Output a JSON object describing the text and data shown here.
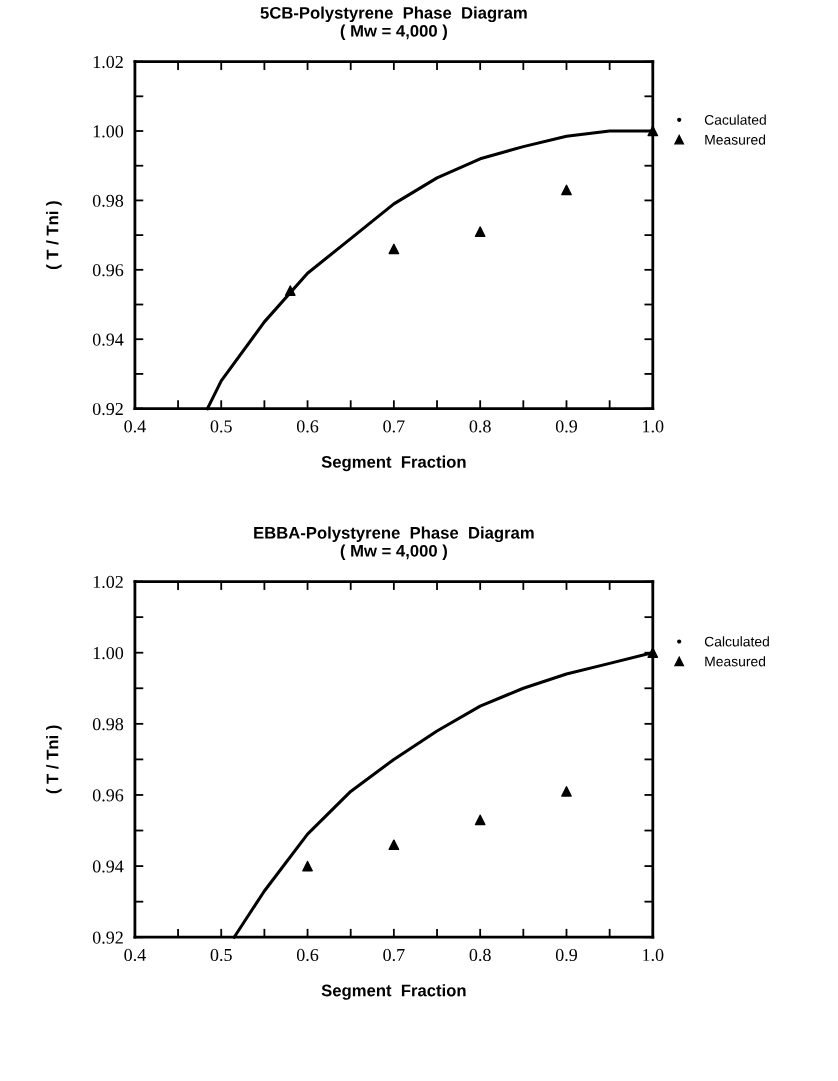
{
  "chart_data": [
    {
      "type": "line",
      "title": "5CB-Polystyrene  Phase  Diagram\n( Mw = 4,000 )",
      "xlabel": "Segment  Fraction",
      "ylabel": "( T / Tni )",
      "xlim": [
        0.4,
        1.0
      ],
      "ylim": [
        0.92,
        1.02
      ],
      "xticks": [
        0.4,
        {
          "value": 0.45,
          "label": null
        },
        0.5,
        {
          "value": 0.55,
          "label": null
        },
        0.6,
        {
          "value": 0.65,
          "label": null
        },
        0.7,
        {
          "value": 0.75,
          "label": null
        },
        0.8,
        {
          "value": 0.85,
          "label": null
        },
        0.9,
        {
          "value": 0.95,
          "label": null
        },
        {
          "value": 1.0,
          "label": "1.0"
        }
      ],
      "yticks": [
        0.92,
        {
          "value": 0.93,
          "label": null
        },
        0.94,
        {
          "value": 0.95,
          "label": null
        },
        0.96,
        {
          "value": 0.97,
          "label": null
        },
        0.98,
        {
          "value": 0.99,
          "label": null
        },
        {
          "value": 1.0,
          "label": "1.00"
        },
        {
          "value": 1.01,
          "label": null
        },
        1.02
      ],
      "grid": false,
      "legend": "right",
      "series": [
        {
          "name": "Caculated",
          "color": "#000000",
          "marker": "none",
          "x": [
            0.484,
            0.5,
            0.55,
            0.6,
            0.65,
            0.7,
            0.75,
            0.8,
            0.85,
            0.9,
            0.95,
            1.0
          ],
          "values": [
            0.92,
            0.928,
            0.945,
            0.959,
            0.969,
            0.979,
            0.9865,
            0.992,
            0.9955,
            0.9985,
            1.0,
            1.0
          ]
        },
        {
          "name": "Measured",
          "type": "scatter",
          "color": "#000000",
          "marker": "triangle",
          "x": [
            0.58,
            0.7,
            0.8,
            0.9,
            1.0
          ],
          "values": [
            0.954,
            0.966,
            0.971,
            0.983,
            1.0
          ]
        }
      ]
    },
    {
      "type": "line",
      "title": "EBBA-Polystyrene  Phase  Diagram\n( Mw = 4,000 )",
      "xlabel": "Segment  Fraction",
      "ylabel": "( T / Tni )",
      "xlim": [
        0.4,
        1.0
      ],
      "ylim": [
        0.92,
        1.02
      ],
      "xticks": [
        0.4,
        {
          "value": 0.45,
          "label": null
        },
        0.5,
        {
          "value": 0.55,
          "label": null
        },
        0.6,
        {
          "value": 0.65,
          "label": null
        },
        0.7,
        {
          "value": 0.75,
          "label": null
        },
        0.8,
        {
          "value": 0.85,
          "label": null
        },
        0.9,
        {
          "value": 0.95,
          "label": null
        },
        {
          "value": 1.0,
          "label": "1.0"
        }
      ],
      "yticks": [
        0.92,
        {
          "value": 0.93,
          "label": null
        },
        0.94,
        {
          "value": 0.95,
          "label": null
        },
        0.96,
        {
          "value": 0.97,
          "label": null
        },
        0.98,
        {
          "value": 0.99,
          "label": null
        },
        {
          "value": 1.0,
          "label": "1.00"
        },
        {
          "value": 1.01,
          "label": null
        },
        1.02
      ],
      "grid": false,
      "legend": "right",
      "series": [
        {
          "name": "Calculated",
          "color": "#000000",
          "marker": "none",
          "x": [
            0.515,
            0.55,
            0.6,
            0.65,
            0.7,
            0.75,
            0.8,
            0.85,
            0.9,
            0.95,
            1.0
          ],
          "values": [
            0.92,
            0.933,
            0.949,
            0.961,
            0.97,
            0.978,
            0.985,
            0.99,
            0.994,
            0.997,
            1.0
          ]
        },
        {
          "name": "Measured",
          "type": "scatter",
          "color": "#000000",
          "marker": "triangle",
          "x": [
            0.6,
            0.7,
            0.8,
            0.9,
            1.0
          ],
          "values": [
            0.94,
            0.946,
            0.953,
            0.961,
            1.0
          ]
        }
      ]
    }
  ]
}
